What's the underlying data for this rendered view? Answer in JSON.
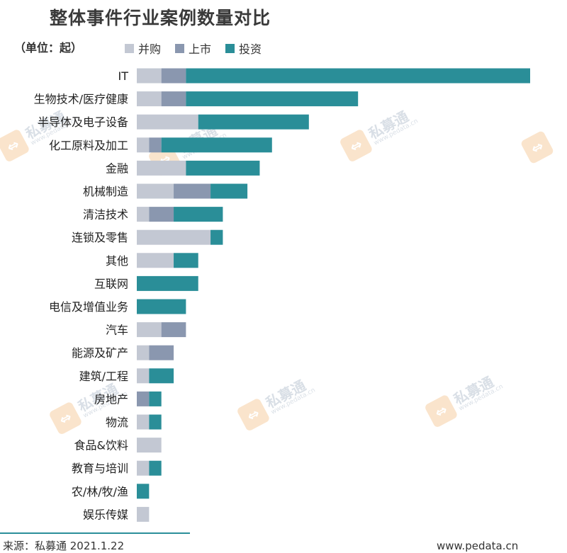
{
  "title": "整体事件行业案例数量对比",
  "unit": "（单位：起）",
  "legend": [
    {
      "name": "并购",
      "color": "#c3c8d3"
    },
    {
      "name": "上市",
      "color": "#8a97af"
    },
    {
      "name": "投资",
      "color": "#2a8e98"
    }
  ],
  "watermark": {
    "logo": "⇔",
    "name": "私募通",
    "url": "www.pedata.cn"
  },
  "footer": {
    "source": "来源：私募通 2021.1.22",
    "url": "www.pedata.cn"
  },
  "chart_data": {
    "type": "bar",
    "orientation": "horizontal",
    "stacked": true,
    "categories": [
      "IT",
      "生物技术/医疗健康",
      "半导体及电子设备",
      "化工原料及加工",
      "金融",
      "机械制造",
      "清洁技术",
      "连锁及零售",
      "其他",
      "互联网",
      "电信及增值业务",
      "汽车",
      "能源及矿产",
      "建筑/工程",
      "房地产",
      "物流",
      "食品&饮料",
      "教育与培训",
      "农/林/牧/渔",
      "娱乐传媒"
    ],
    "series": [
      {
        "name": "并购",
        "color": "#c3c8d3",
        "values": [
          2,
          2,
          5,
          1,
          4,
          3,
          1,
          6,
          3,
          0,
          0,
          2,
          1,
          1,
          0,
          1,
          2,
          1,
          0,
          1
        ]
      },
      {
        "name": "上市",
        "color": "#8a97af",
        "values": [
          2,
          2,
          0,
          1,
          0,
          3,
          2,
          0,
          0,
          0,
          0,
          2,
          2,
          0,
          1,
          0,
          0,
          0,
          0,
          0
        ]
      },
      {
        "name": "投资",
        "color": "#2a8e98",
        "values": [
          28,
          14,
          9,
          9,
          6,
          3,
          4,
          1,
          2,
          5,
          4,
          0,
          0,
          2,
          1,
          1,
          0,
          1,
          1,
          0
        ]
      }
    ],
    "xlim": [
      0,
      32
    ],
    "grid": false,
    "legend_position": "top"
  }
}
